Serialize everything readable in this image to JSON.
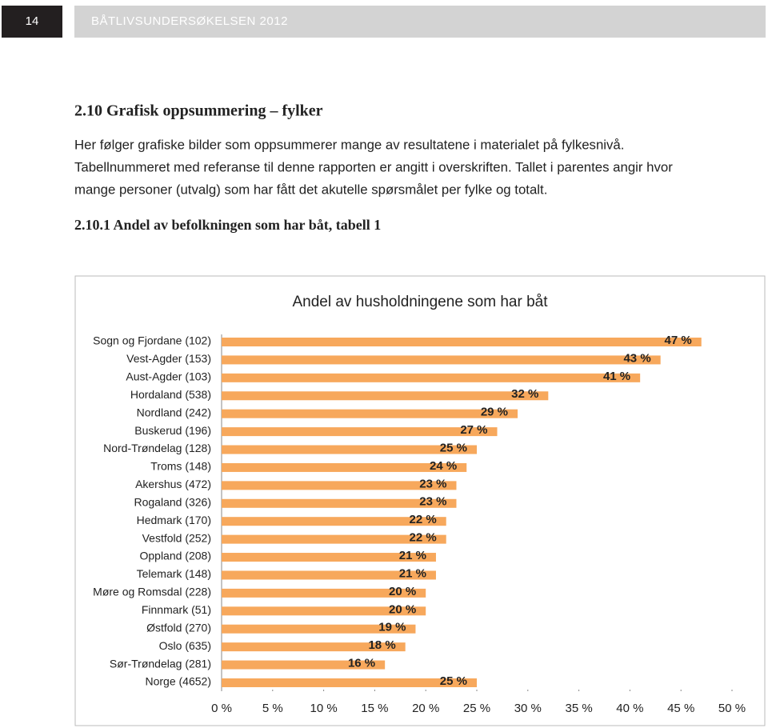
{
  "header": {
    "page_number": "14",
    "title": "BÅTLIVSUNDERSØKELSEN 2012"
  },
  "section": {
    "heading": "2.10 Grafisk oppsummering – fylker",
    "paragraph_lines": [
      "Her følger grafiske bilder som oppsummerer mange av resultatene i materialet på fylkesnivå.",
      "Tabellnummeret med referanse til denne rapporten er angitt i overskriften. Tallet i parentes angir hvor",
      "mange personer (utvalg) som har fått det akutelle spørsmålet per fylke og totalt."
    ],
    "subheading": "2.10.1 Andel av befolkningen som har båt, tabell 1"
  },
  "chart_data": {
    "type": "hbar",
    "title": "Andel av husholdningene som har båt",
    "categories": [
      "Sogn og Fjordane (102)",
      "Vest-Agder (153)",
      "Aust-Agder (103)",
      "Hordaland (538)",
      "Nordland (242)",
      "Buskerud (196)",
      "Nord-Trøndelag (128)",
      "Troms (148)",
      "Akershus (472)",
      "Rogaland (326)",
      "Hedmark (170)",
      "Vestfold (252)",
      "Oppland (208)",
      "Telemark (148)",
      "Møre og Romsdal (228)",
      "Finnmark (51)",
      "Østfold (270)",
      "Oslo (635)",
      "Sør-Trøndelag (281)",
      "Norge (4652)"
    ],
    "values": [
      47,
      43,
      41,
      32,
      29,
      27,
      25,
      24,
      23,
      23,
      22,
      22,
      21,
      21,
      20,
      20,
      19,
      18,
      16,
      25
    ],
    "value_labels": [
      "47 %",
      "43 %",
      "41 %",
      "32 %",
      "29 %",
      "27 %",
      "25 %",
      "24 %",
      "23 %",
      "23 %",
      "22 %",
      "22 %",
      "21 %",
      "21 %",
      "20 %",
      "20 %",
      "19 %",
      "18 %",
      "16 %",
      "25 %"
    ],
    "color": "#f7a85c",
    "xlim": [
      0,
      50
    ],
    "xticks": [
      {
        "value": 0,
        "label": "0 %"
      },
      {
        "value": 5,
        "label": "5 %"
      },
      {
        "value": 10,
        "label": "10 %"
      },
      {
        "value": 15,
        "label": "15 %"
      },
      {
        "value": 20,
        "label": "20 %"
      },
      {
        "value": 25,
        "label": "25 %"
      },
      {
        "value": 30,
        "label": "30 %"
      },
      {
        "value": 35,
        "label": "35 %"
      },
      {
        "value": 40,
        "label": "40 %"
      },
      {
        "value": 45,
        "label": "45 %"
      },
      {
        "value": 50,
        "label": "50 %"
      }
    ],
    "grid": false
  }
}
